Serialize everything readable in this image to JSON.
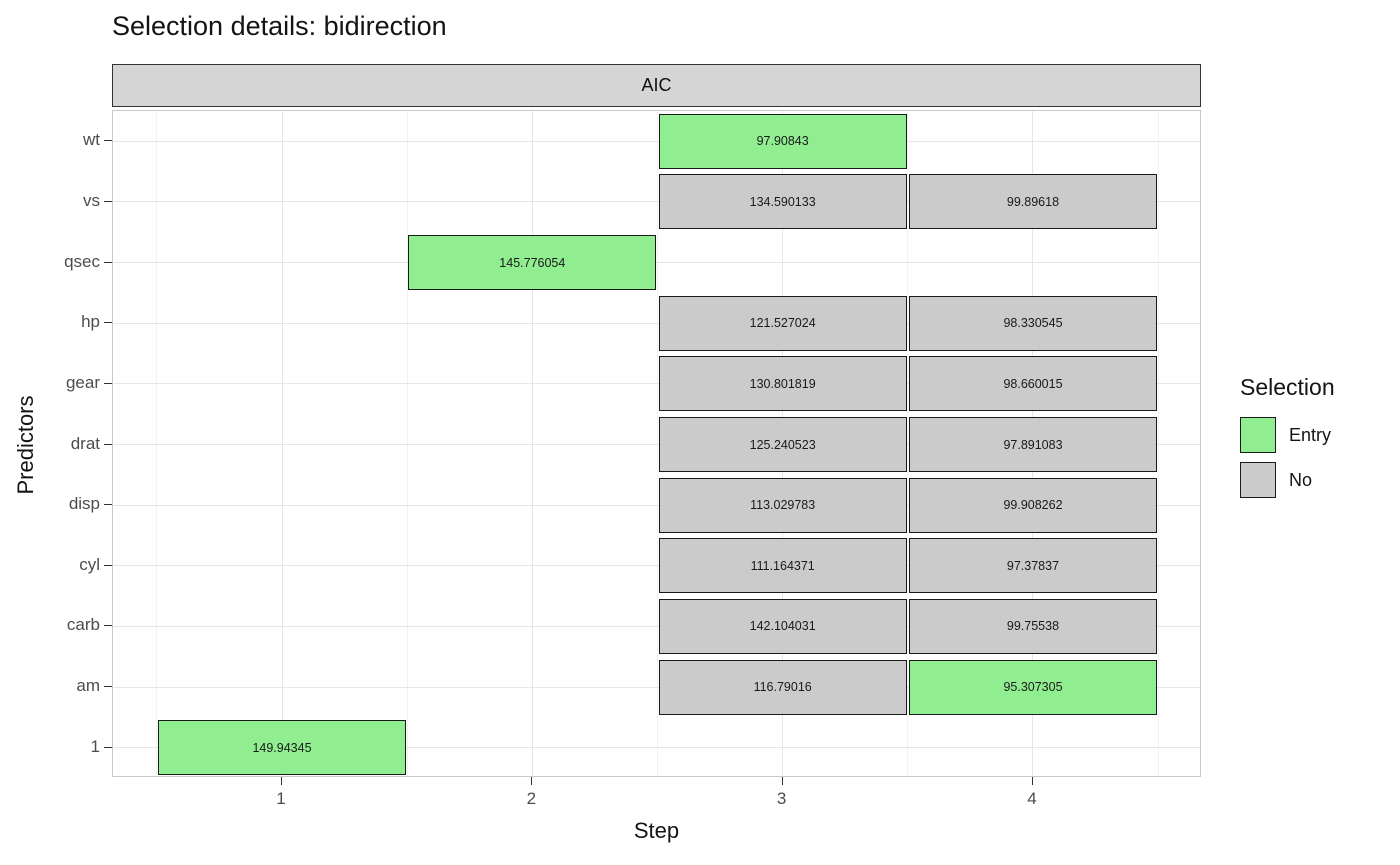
{
  "title": "Selection details: bidirection",
  "facet_label": "AIC",
  "axes": {
    "x_title": "Step",
    "y_title": "Predictors"
  },
  "legend": {
    "title": "Selection",
    "entries": [
      {
        "label": "Entry",
        "color": "#90EE90"
      },
      {
        "label": "No",
        "color": "#CBCBCB"
      }
    ]
  },
  "chart_data": {
    "type": "heatmap",
    "title": "Selection details: bidirection",
    "facet": "AIC",
    "xlabel": "Step",
    "ylabel": "Predictors",
    "legend_title": "Selection",
    "legend_position": "right",
    "grid": true,
    "x_ticks": [
      "1",
      "2",
      "3",
      "4"
    ],
    "x_range": [
      0.5,
      4.5
    ],
    "y_categories_top_to_bottom": [
      "wt",
      "vs",
      "qsec",
      "hp",
      "gear",
      "drat",
      "disp",
      "cyl",
      "carb",
      "am",
      "1"
    ],
    "colors": {
      "Entry": "#90EE90",
      "No": "#CBCBCB"
    },
    "tiles": [
      {
        "predictor": "wt",
        "step": 3,
        "value": 97.90843,
        "label": "97.90843",
        "selection": "Entry"
      },
      {
        "predictor": "vs",
        "step": 3,
        "value": 134.590133,
        "label": "134.590133",
        "selection": "No"
      },
      {
        "predictor": "vs",
        "step": 4,
        "value": 99.89618,
        "label": "99.89618",
        "selection": "No"
      },
      {
        "predictor": "qsec",
        "step": 2,
        "value": 145.776054,
        "label": "145.776054",
        "selection": "Entry"
      },
      {
        "predictor": "hp",
        "step": 3,
        "value": 121.527024,
        "label": "121.527024",
        "selection": "No"
      },
      {
        "predictor": "hp",
        "step": 4,
        "value": 98.330545,
        "label": "98.330545",
        "selection": "No"
      },
      {
        "predictor": "gear",
        "step": 3,
        "value": 130.801819,
        "label": "130.801819",
        "selection": "No"
      },
      {
        "predictor": "gear",
        "step": 4,
        "value": 98.660015,
        "label": "98.660015",
        "selection": "No"
      },
      {
        "predictor": "drat",
        "step": 3,
        "value": 125.240523,
        "label": "125.240523",
        "selection": "No"
      },
      {
        "predictor": "drat",
        "step": 4,
        "value": 97.891083,
        "label": "97.891083",
        "selection": "No"
      },
      {
        "predictor": "disp",
        "step": 3,
        "value": 113.029783,
        "label": "113.029783",
        "selection": "No"
      },
      {
        "predictor": "disp",
        "step": 4,
        "value": 99.908262,
        "label": "99.908262",
        "selection": "No"
      },
      {
        "predictor": "cyl",
        "step": 3,
        "value": 111.164371,
        "label": "111.164371",
        "selection": "No"
      },
      {
        "predictor": "cyl",
        "step": 4,
        "value": 97.37837,
        "label": "97.37837",
        "selection": "No"
      },
      {
        "predictor": "carb",
        "step": 3,
        "value": 142.104031,
        "label": "142.104031",
        "selection": "No"
      },
      {
        "predictor": "carb",
        "step": 4,
        "value": 99.75538,
        "label": "99.75538",
        "selection": "No"
      },
      {
        "predictor": "am",
        "step": 3,
        "value": 116.79016,
        "label": "116.79016",
        "selection": "No"
      },
      {
        "predictor": "am",
        "step": 4,
        "value": 95.307305,
        "label": "95.307305",
        "selection": "Entry"
      },
      {
        "predictor": "1",
        "step": 1,
        "value": 149.94345,
        "label": "149.94345",
        "selection": "Entry"
      }
    ]
  }
}
